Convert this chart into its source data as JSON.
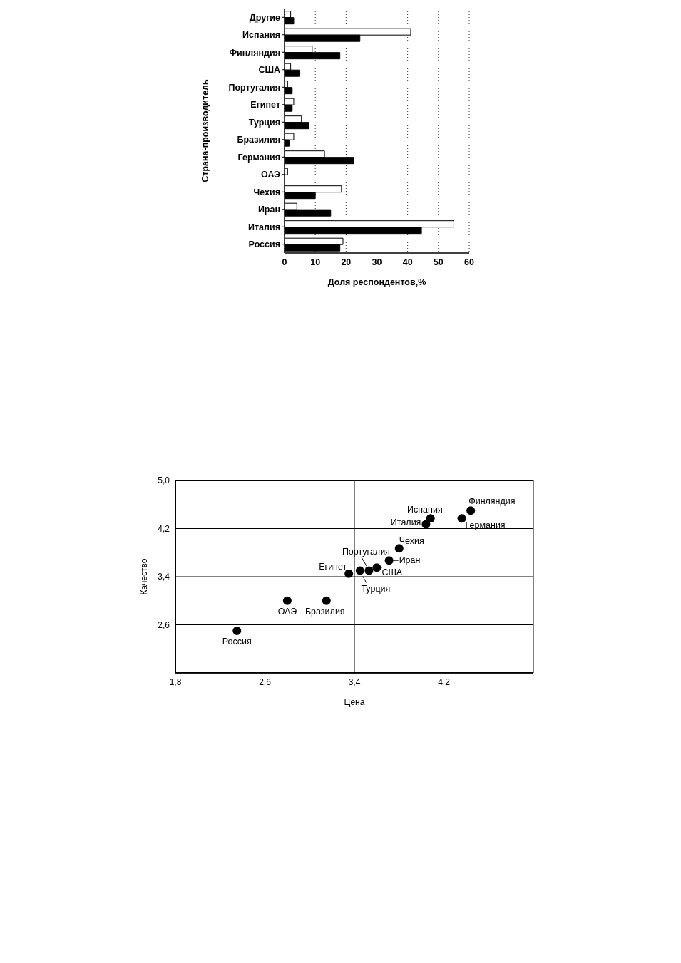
{
  "chart_data": [
    {
      "type": "bar",
      "orientation": "horizontal",
      "ylabel": "Страна-производитель",
      "xlabel": "Доля респондентов,%",
      "categories": [
        "Другие",
        "Испания",
        "Финляндия",
        "США",
        "Португалия",
        "Египет",
        "Турция",
        "Бразилия",
        "Германия",
        "ОАЭ",
        "Чехия",
        "Иран",
        "Италия",
        "Россия"
      ],
      "series": [
        {
          "color": "#ffffff",
          "values": [
            2,
            41,
            9,
            2,
            1,
            3,
            5.5,
            3,
            13,
            1,
            18.5,
            4,
            55,
            19
          ]
        },
        {
          "color": "#000000",
          "values": [
            3,
            24.5,
            18,
            5,
            2.5,
            2.5,
            8,
            1.5,
            22.5,
            null,
            10,
            15,
            44.5,
            18
          ]
        }
      ],
      "xlim": [
        0,
        60
      ],
      "xticks": [
        0,
        10,
        20,
        30,
        40,
        50,
        60
      ],
      "grid": "x"
    },
    {
      "type": "scatter",
      "xlabel": "Цена",
      "ylabel": "Качество",
      "color": "#000000",
      "marker": "circle",
      "x": [
        2.35,
        2.8,
        3.15,
        3.35,
        3.45,
        3.53,
        3.6,
        3.71,
        3.8,
        4.04,
        4.08,
        4.36,
        4.44
      ],
      "values": [
        2.5,
        3.0,
        3.0,
        3.45,
        3.5,
        3.5,
        3.55,
        3.67,
        3.87,
        4.27,
        4.37,
        4.37,
        4.5
      ],
      "xlim": [
        1.8,
        5.0
      ],
      "xticks": [
        {
          "value": 1.8,
          "label": "1,8"
        },
        {
          "value": 2.6,
          "label": "2,6"
        },
        {
          "value": 3.4,
          "label": "3,4"
        },
        {
          "value": 4.2,
          "label": "4,2"
        }
      ],
      "ylim": [
        1.8,
        5.0
      ],
      "yticks": [
        {
          "value": 2.6,
          "label": "2,6"
        },
        {
          "value": 3.4,
          "label": "3,4"
        },
        {
          "value": 4.2,
          "label": "4,2"
        },
        {
          "value": 5.0,
          "label": "5,0"
        }
      ],
      "grid": true,
      "annotations": [
        {
          "text": "Россия",
          "x": 2.35,
          "y": 2.5
        },
        {
          "text": "ОАЭ",
          "x": 2.8,
          "y": 3.0
        },
        {
          "text": "Бразилия",
          "x": 3.15,
          "y": 3.0
        },
        {
          "text": "Египет",
          "x": 3.35,
          "y": 3.45
        },
        {
          "text": "Турция",
          "x": 3.45,
          "y": 3.5
        },
        {
          "text": "Португалия",
          "x": 3.53,
          "y": 3.5
        },
        {
          "text": "США",
          "x": 3.6,
          "y": 3.55
        },
        {
          "text": "Иран",
          "x": 3.71,
          "y": 3.67
        },
        {
          "text": "Чехия",
          "x": 3.8,
          "y": 3.87
        },
        {
          "text": "Италия",
          "x": 4.04,
          "y": 4.27
        },
        {
          "text": "Испания",
          "x": 4.08,
          "y": 4.37
        },
        {
          "text": "Германия",
          "x": 4.36,
          "y": 4.37
        },
        {
          "text": "Финляндия",
          "x": 4.44,
          "y": 4.5
        }
      ]
    }
  ]
}
